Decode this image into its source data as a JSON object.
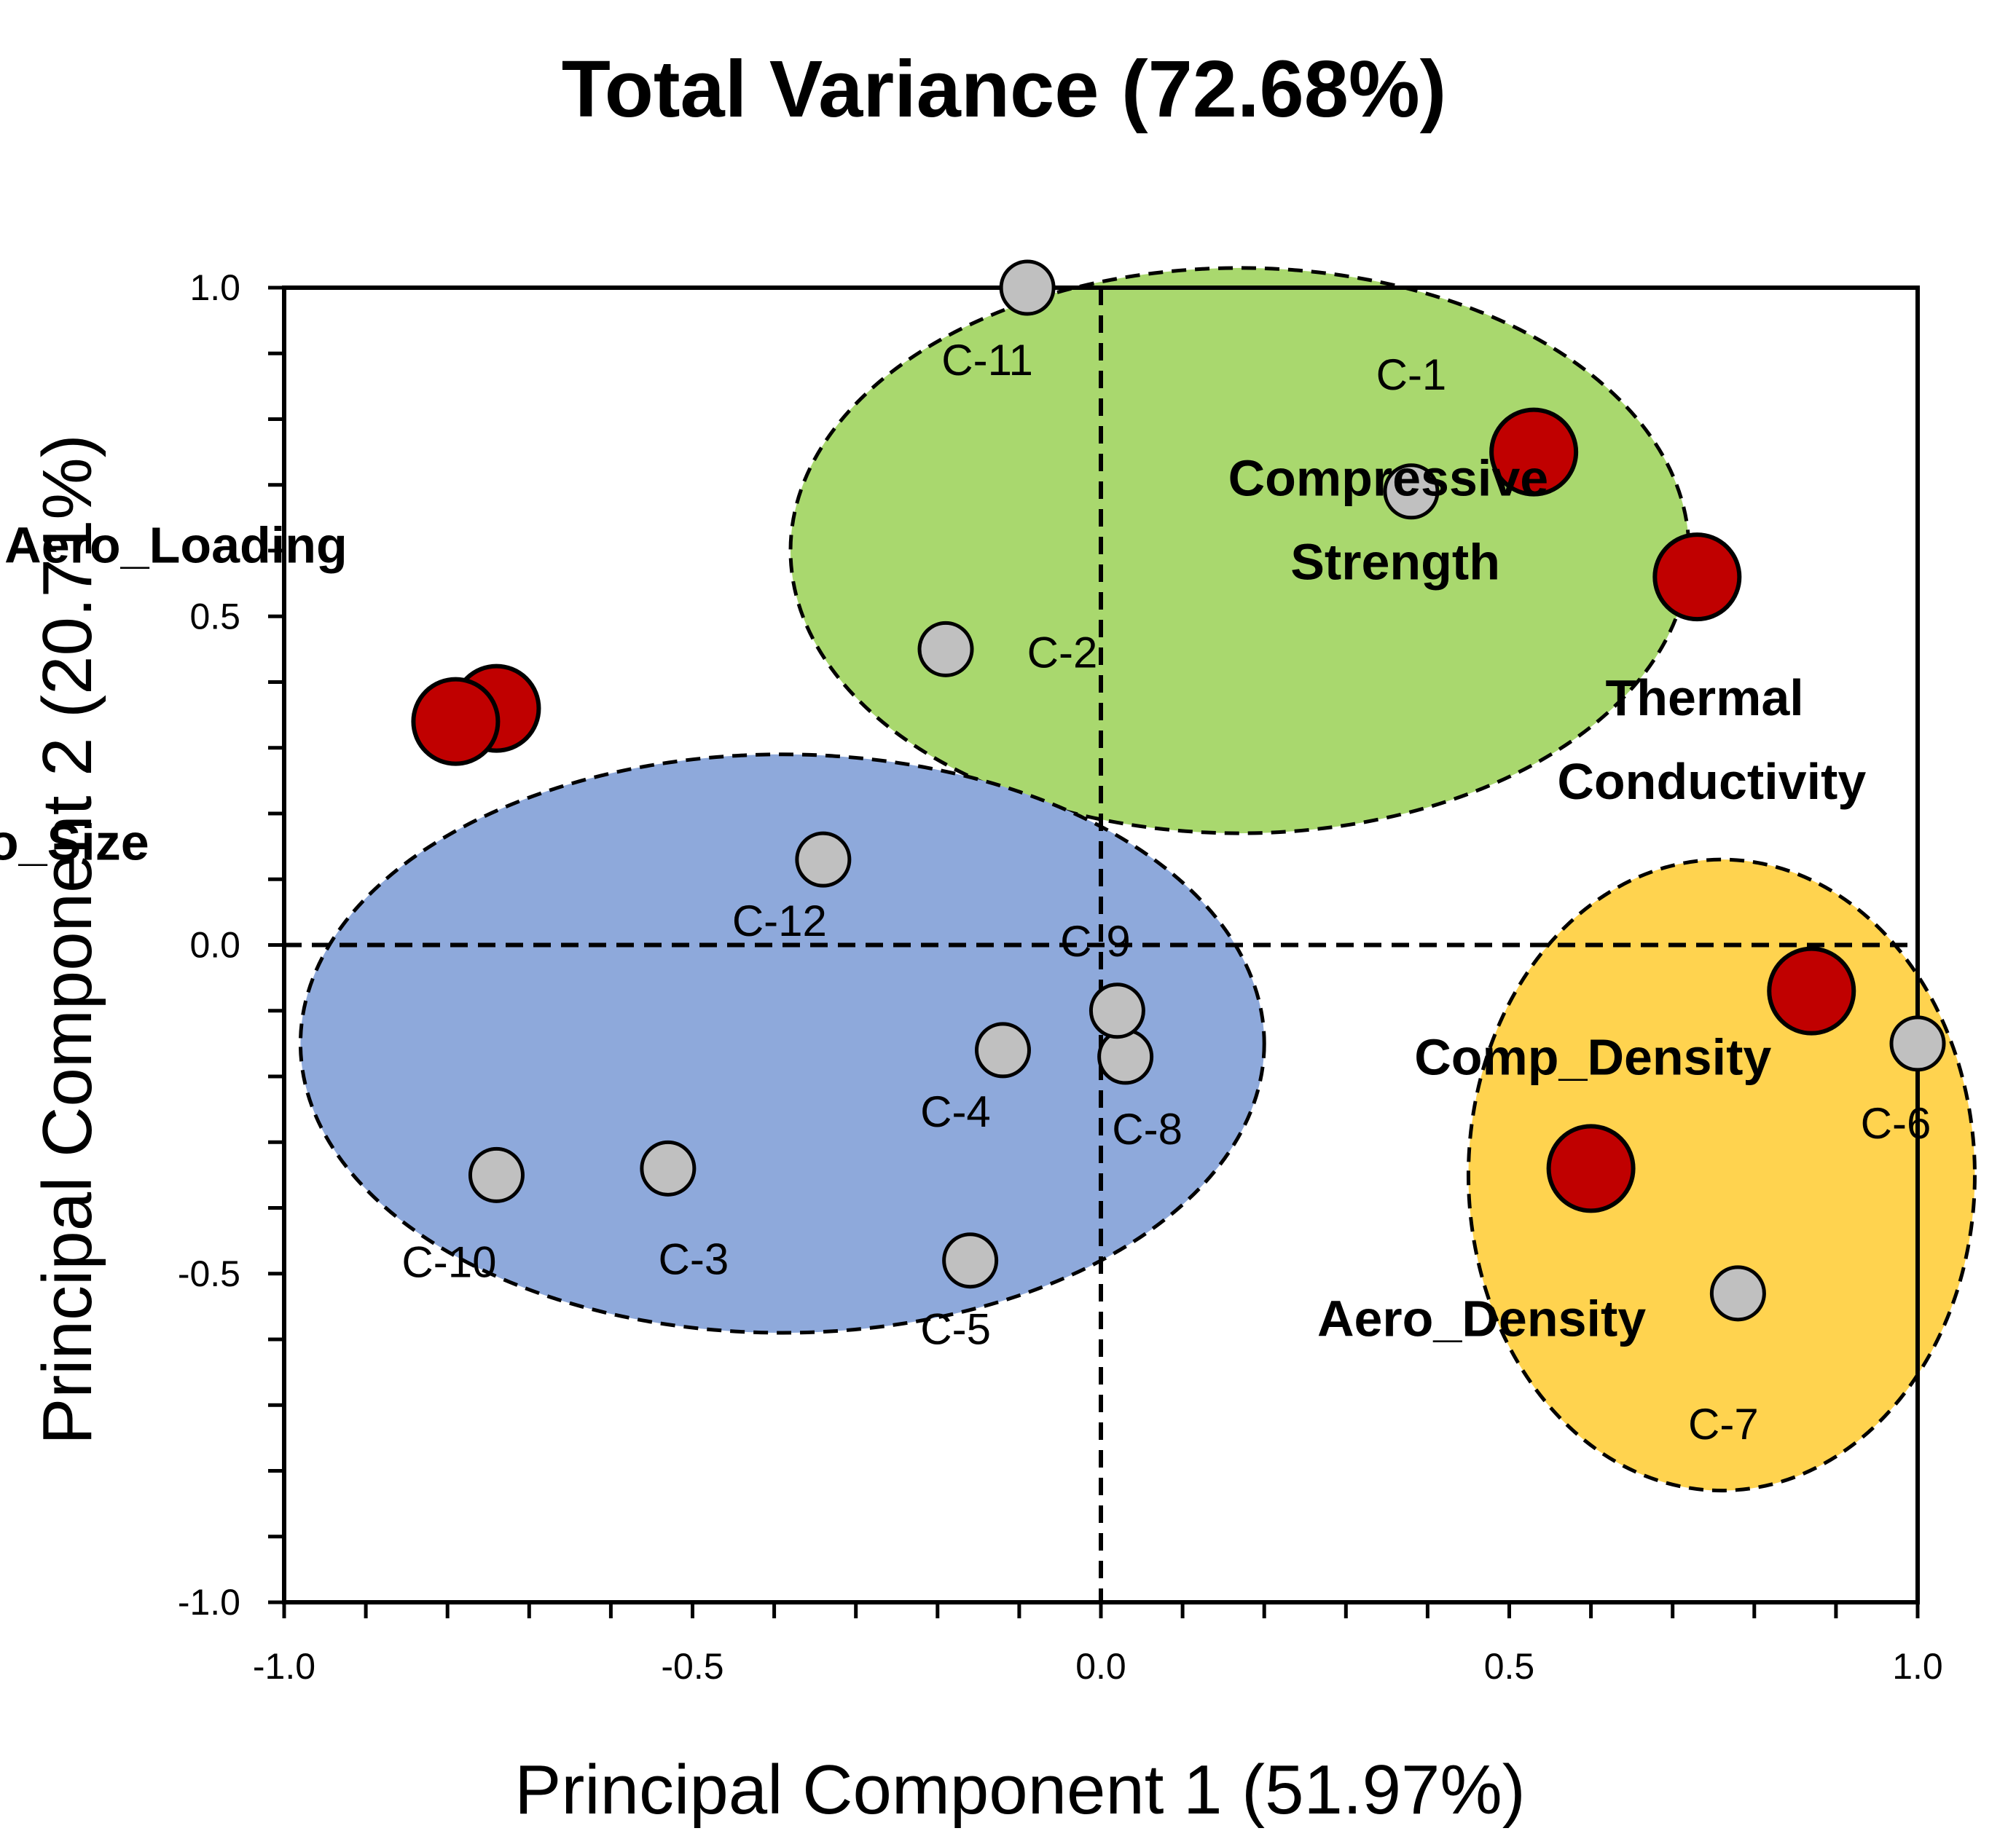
{
  "chart_data": {
    "type": "scatter",
    "title": "Total Variance (72.68%)",
    "xlabel": "Principal Component 1 (51.97%)",
    "ylabel": "Principal Component 2 (20.71%)",
    "xlim": [
      -1.0,
      1.0
    ],
    "ylim": [
      -1.0,
      1.0
    ],
    "xticks": [
      -1.0,
      -0.5,
      0.0,
      0.5,
      1.0
    ],
    "yticks": [
      -1.0,
      -0.5,
      0.0,
      0.5,
      1.0
    ],
    "xtick_labels": [
      "-1.0",
      "-0.5",
      "0.0",
      "0.5",
      "1.0"
    ],
    "ytick_labels": [
      "-1.0",
      "-0.5",
      "0.0",
      "0.5",
      "1.0"
    ],
    "grid": false,
    "colors": {
      "variable_fill": "#c00000",
      "sample_fill": "#c0c0c0",
      "green_cluster": "#a9d86e",
      "blue_cluster": "#8ea9db",
      "yellow_cluster": "#ffd34f"
    },
    "clusters": [
      {
        "name": "green",
        "center": [
          0.17,
          0.6
        ],
        "radius": [
          0.55,
          0.43
        ]
      },
      {
        "name": "blue",
        "center": [
          -0.39,
          -0.15
        ],
        "radius": [
          0.59,
          0.44
        ]
      },
      {
        "name": "yellow",
        "center": [
          0.76,
          -0.35
        ],
        "radius": [
          0.31,
          0.48
        ]
      }
    ],
    "samples": [
      {
        "label": "C-1",
        "x": 0.38,
        "y": 0.69
      },
      {
        "label": "C-2",
        "x": -0.19,
        "y": 0.45
      },
      {
        "label": "C-3",
        "x": -0.53,
        "y": -0.34
      },
      {
        "label": "C-4",
        "x": -0.12,
        "y": -0.16
      },
      {
        "label": "C-5",
        "x": -0.16,
        "y": -0.48
      },
      {
        "label": "C-6",
        "x": 1.0,
        "y": -0.15
      },
      {
        "label": "C-7",
        "x": 0.78,
        "y": -0.53
      },
      {
        "label": "C-8",
        "x": 0.03,
        "y": -0.17
      },
      {
        "label": "C-9",
        "x": 0.02,
        "y": -0.1
      },
      {
        "label": "C-10",
        "x": -0.74,
        "y": -0.35
      },
      {
        "label": "C-11",
        "x": -0.09,
        "y": 1.0
      },
      {
        "label": "C-12",
        "x": -0.34,
        "y": 0.13
      }
    ],
    "variables": [
      {
        "label": "Aero_Loading",
        "x": -0.74,
        "y": 0.36
      },
      {
        "label": "Aero_Size",
        "x": -0.79,
        "y": 0.34
      },
      {
        "label": "Compressive Strength",
        "x": 0.53,
        "y": 0.75
      },
      {
        "label": "Thermal Conductivity",
        "x": 0.73,
        "y": 0.56
      },
      {
        "label": "Comp_Density",
        "x": 0.87,
        "y": -0.07
      },
      {
        "label": "Aero_Density",
        "x": 0.6,
        "y": -0.34
      }
    ]
  }
}
